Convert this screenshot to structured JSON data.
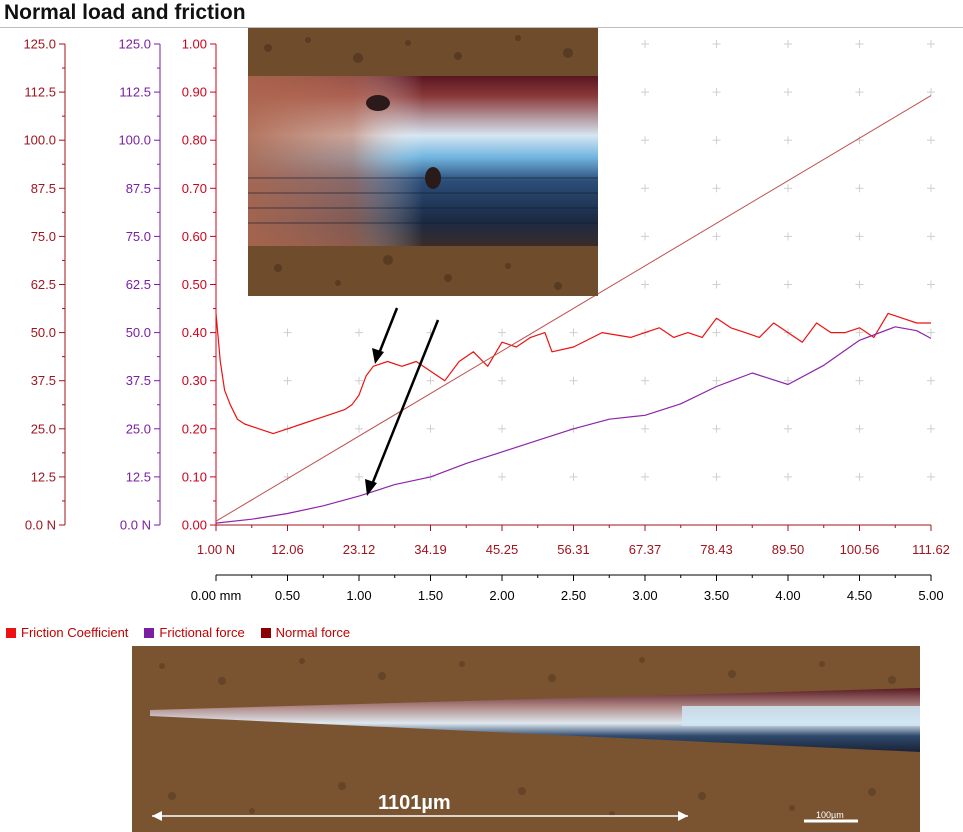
{
  "title": "Normal load and friction",
  "chart_data": {
    "type": "line",
    "title": "Normal load and friction",
    "y_axes": [
      {
        "name": "normal-force-axis",
        "color": "#a0141e",
        "ticks": [
          "0.0 N",
          "12.5",
          "25.0",
          "37.5",
          "50.0",
          "62.5",
          "75.0",
          "87.5",
          "100.0",
          "112.5",
          "125.0"
        ],
        "range": [
          0,
          125
        ]
      },
      {
        "name": "frictional-force-axis",
        "color": "#7b1fa2",
        "ticks": [
          "0.0 N",
          "12.5",
          "25.0",
          "37.5",
          "50.0",
          "62.5",
          "75.0",
          "87.5",
          "100.0",
          "112.5",
          "125.0"
        ],
        "range": [
          0,
          125
        ]
      },
      {
        "name": "friction-coefficient-axis",
        "color": "#d0021b",
        "ticks": [
          "0.00",
          "0.10",
          "0.20",
          "0.30",
          "0.40",
          "0.50",
          "0.60",
          "0.70",
          "0.80",
          "0.90",
          "1.00"
        ],
        "range": [
          0,
          1
        ]
      }
    ],
    "x_axes": [
      {
        "name": "load-axis",
        "color": "#a0141e",
        "ticks": [
          "1.00 N",
          "12.06",
          "23.12",
          "34.19",
          "45.25",
          "56.31",
          "67.37",
          "78.43",
          "89.50",
          "100.56",
          "111.62"
        ]
      },
      {
        "name": "distance-axis",
        "color": "#000000",
        "ticks": [
          "0.00 mm",
          "0.50",
          "1.00",
          "1.50",
          "2.00",
          "2.50",
          "3.00",
          "3.50",
          "4.00",
          "4.50",
          "5.00"
        ],
        "range": [
          0,
          5
        ]
      }
    ],
    "series": [
      {
        "name": "Friction Coefficient",
        "color": "#ee1111",
        "axis": "friction-coefficient",
        "x": [
          0.0,
          0.03,
          0.06,
          0.1,
          0.15,
          0.2,
          0.3,
          0.4,
          0.5,
          0.6,
          0.7,
          0.8,
          0.9,
          0.95,
          1.0,
          1.05,
          1.1,
          1.2,
          1.3,
          1.4,
          1.5,
          1.6,
          1.7,
          1.8,
          1.9,
          2.0,
          2.1,
          2.2,
          2.3,
          2.35,
          2.5,
          2.7,
          2.9,
          3.0,
          3.1,
          3.2,
          3.3,
          3.4,
          3.5,
          3.6,
          3.7,
          3.8,
          3.9,
          4.0,
          4.1,
          4.2,
          4.3,
          4.4,
          4.5,
          4.6,
          4.7,
          4.8,
          4.9,
          5.0
        ],
        "y": [
          0.44,
          0.34,
          0.28,
          0.25,
          0.22,
          0.21,
          0.2,
          0.19,
          0.2,
          0.21,
          0.22,
          0.23,
          0.24,
          0.25,
          0.27,
          0.31,
          0.33,
          0.34,
          0.33,
          0.34,
          0.32,
          0.3,
          0.34,
          0.36,
          0.33,
          0.38,
          0.37,
          0.39,
          0.4,
          0.36,
          0.37,
          0.4,
          0.39,
          0.4,
          0.41,
          0.39,
          0.4,
          0.39,
          0.43,
          0.41,
          0.4,
          0.39,
          0.42,
          0.4,
          0.38,
          0.42,
          0.4,
          0.4,
          0.41,
          0.39,
          0.44,
          0.43,
          0.42,
          0.42
        ]
      },
      {
        "name": "Frictional force",
        "color": "#8e24aa",
        "axis": "frictional-force",
        "x": [
          0.0,
          0.25,
          0.5,
          0.75,
          1.0,
          1.25,
          1.5,
          1.75,
          2.0,
          2.25,
          2.5,
          2.75,
          3.0,
          3.25,
          3.5,
          3.75,
          4.0,
          4.25,
          4.5,
          4.75,
          4.9,
          5.0
        ],
        "y": [
          0.5,
          1.5,
          3.0,
          5.0,
          7.5,
          10.5,
          12.5,
          16.0,
          19.0,
          22.0,
          25.0,
          27.5,
          28.5,
          31.5,
          36.0,
          39.5,
          36.5,
          41.5,
          48.0,
          51.5,
          50.5,
          48.5
        ]
      },
      {
        "name": "Normal force",
        "color": "#c0504d",
        "axis": "normal-force",
        "x": [
          0,
          5
        ],
        "y": [
          1.0,
          111.6
        ]
      }
    ],
    "legend": [
      {
        "label": "Friction Coefficient",
        "color": "#ee1111"
      },
      {
        "label": "Frictional force",
        "color": "#7b1fa2"
      },
      {
        "label": "Normal force",
        "color": "#8b0000"
      }
    ],
    "legend_position": "bottom-left",
    "grid": true
  },
  "annotations": {
    "track_length": "1101µm",
    "scale_bar": "100µm"
  }
}
